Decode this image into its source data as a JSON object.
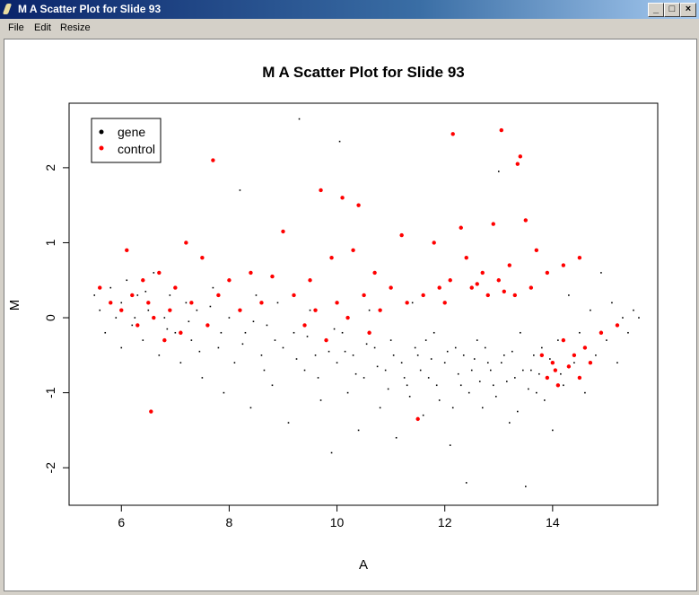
{
  "window": {
    "title": "M A Scatter Plot for Slide 93",
    "icon": "feather-icon",
    "controls": [
      "minimize",
      "maximize",
      "close"
    ]
  },
  "menu": [
    "File",
    "Edit",
    "Resize"
  ],
  "chart_data": {
    "type": "scatter",
    "title": "M A Scatter Plot for Slide 93",
    "xlabel": "A",
    "ylabel": "M",
    "xlim": [
      5.03,
      15.95
    ],
    "ylim": [
      -2.5,
      2.86
    ],
    "xticks": [
      6,
      8,
      10,
      12,
      14
    ],
    "yticks": [
      -2,
      -1,
      0,
      1,
      2
    ],
    "grid": false,
    "legend_position": "top-left",
    "series": [
      {
        "name": "gene",
        "color": "#000000",
        "points": [
          [
            5.5,
            0.3
          ],
          [
            5.6,
            0.1
          ],
          [
            5.7,
            -0.2
          ],
          [
            5.8,
            0.4
          ],
          [
            5.9,
            0.0
          ],
          [
            6.0,
            0.2
          ],
          [
            6.0,
            -0.4
          ],
          [
            6.1,
            0.5
          ],
          [
            6.2,
            -0.1
          ],
          [
            6.3,
            0.3
          ],
          [
            6.4,
            -0.3
          ],
          [
            6.5,
            0.1
          ],
          [
            6.6,
            0.6
          ],
          [
            6.7,
            -0.5
          ],
          [
            6.8,
            0.0
          ],
          [
            6.9,
            0.3
          ],
          [
            7.0,
            -0.2
          ],
          [
            7.1,
            -0.6
          ],
          [
            7.2,
            0.2
          ],
          [
            7.3,
            -0.3
          ],
          [
            7.4,
            0.1
          ],
          [
            7.5,
            -0.8
          ],
          [
            7.6,
            -0.1
          ],
          [
            7.7,
            0.4
          ],
          [
            7.8,
            -0.4
          ],
          [
            7.9,
            -1.0
          ],
          [
            8.0,
            0.0
          ],
          [
            8.1,
            -0.6
          ],
          [
            8.2,
            1.7
          ],
          [
            8.3,
            -0.2
          ],
          [
            8.4,
            -1.2
          ],
          [
            8.5,
            0.3
          ],
          [
            8.6,
            -0.5
          ],
          [
            8.7,
            -0.1
          ],
          [
            8.8,
            -0.9
          ],
          [
            8.9,
            0.2
          ],
          [
            9.0,
            -0.4
          ],
          [
            9.1,
            -1.4
          ],
          [
            9.2,
            -0.2
          ],
          [
            9.3,
            2.65
          ],
          [
            9.4,
            -0.7
          ],
          [
            9.5,
            0.1
          ],
          [
            9.6,
            -0.5
          ],
          [
            9.7,
            -1.1
          ],
          [
            9.8,
            -0.3
          ],
          [
            9.9,
            -1.8
          ],
          [
            10.0,
            -0.6
          ],
          [
            10.05,
            2.35
          ],
          [
            10.1,
            -0.2
          ],
          [
            10.2,
            -1.0
          ],
          [
            10.3,
            -0.5
          ],
          [
            10.4,
            -1.5
          ],
          [
            10.5,
            -0.8
          ],
          [
            10.6,
            0.1
          ],
          [
            10.7,
            -0.4
          ],
          [
            10.8,
            -1.2
          ],
          [
            10.9,
            -0.7
          ],
          [
            11.0,
            -0.3
          ],
          [
            11.1,
            -1.6
          ],
          [
            11.2,
            -0.6
          ],
          [
            11.3,
            -0.9
          ],
          [
            11.4,
            0.2
          ],
          [
            11.5,
            -0.5
          ],
          [
            11.6,
            -1.3
          ],
          [
            11.7,
            -0.8
          ],
          [
            11.8,
            -0.2
          ],
          [
            11.9,
            -1.1
          ],
          [
            12.0,
            -0.6
          ],
          [
            12.1,
            -1.7
          ],
          [
            12.2,
            -0.4
          ],
          [
            12.3,
            -0.9
          ],
          [
            12.4,
            -2.2
          ],
          [
            12.5,
            -0.7
          ],
          [
            12.6,
            -0.3
          ],
          [
            12.7,
            -1.2
          ],
          [
            12.8,
            -0.6
          ],
          [
            12.9,
            -0.9
          ],
          [
            13.0,
            1.95
          ],
          [
            13.1,
            -0.5
          ],
          [
            13.2,
            -1.4
          ],
          [
            13.3,
            -0.8
          ],
          [
            13.4,
            -0.2
          ],
          [
            13.5,
            -2.25
          ],
          [
            13.6,
            -0.7
          ],
          [
            13.7,
            -1.0
          ],
          [
            13.8,
            -0.4
          ],
          [
            13.9,
            -0.8
          ],
          [
            14.0,
            -1.5
          ],
          [
            14.1,
            -0.3
          ],
          [
            14.2,
            -0.9
          ],
          [
            14.3,
            0.3
          ],
          [
            14.4,
            -0.6
          ],
          [
            14.5,
            -0.2
          ],
          [
            14.6,
            -1.0
          ],
          [
            14.7,
            0.1
          ],
          [
            14.8,
            -0.5
          ],
          [
            14.9,
            0.6
          ],
          [
            15.0,
            -0.3
          ],
          [
            15.1,
            0.2
          ],
          [
            15.2,
            -0.6
          ],
          [
            15.3,
            0.0
          ],
          [
            15.4,
            -0.2
          ],
          [
            15.5,
            0.1
          ],
          [
            15.6,
            0.0
          ],
          [
            10.15,
            -0.45
          ],
          [
            10.35,
            -0.75
          ],
          [
            10.55,
            -0.35
          ],
          [
            10.75,
            -0.65
          ],
          [
            10.95,
            -0.95
          ],
          [
            11.05,
            -0.5
          ],
          [
            11.25,
            -0.8
          ],
          [
            11.45,
            -0.4
          ],
          [
            11.55,
            -0.7
          ],
          [
            11.75,
            -0.55
          ],
          [
            11.85,
            -0.9
          ],
          [
            12.05,
            -0.45
          ],
          [
            12.25,
            -0.75
          ],
          [
            12.35,
            -0.5
          ],
          [
            12.45,
            -1.0
          ],
          [
            12.55,
            -0.55
          ],
          [
            12.65,
            -0.85
          ],
          [
            12.75,
            -0.4
          ],
          [
            12.85,
            -0.7
          ],
          [
            12.95,
            -1.05
          ],
          [
            13.05,
            -0.6
          ],
          [
            13.15,
            -0.85
          ],
          [
            13.25,
            -0.45
          ],
          [
            13.45,
            -0.7
          ],
          [
            13.55,
            -0.95
          ],
          [
            13.65,
            -0.5
          ],
          [
            13.75,
            -0.75
          ],
          [
            13.85,
            -1.1
          ],
          [
            13.95,
            -0.55
          ],
          [
            14.15,
            -0.75
          ],
          [
            9.25,
            -0.55
          ],
          [
            9.45,
            -0.25
          ],
          [
            9.65,
            -0.8
          ],
          [
            9.85,
            -0.45
          ],
          [
            9.95,
            -0.15
          ],
          [
            8.25,
            -0.35
          ],
          [
            8.45,
            -0.05
          ],
          [
            8.65,
            -0.7
          ],
          [
            8.85,
            -0.3
          ],
          [
            7.25,
            -0.05
          ],
          [
            7.45,
            -0.45
          ],
          [
            7.65,
            0.15
          ],
          [
            7.85,
            -0.2
          ],
          [
            6.25,
            0.0
          ],
          [
            6.45,
            0.35
          ],
          [
            6.85,
            -0.15
          ],
          [
            11.35,
            -1.05
          ],
          [
            11.65,
            -0.3
          ],
          [
            12.15,
            -1.2
          ],
          [
            13.35,
            -1.25
          ]
        ]
      },
      {
        "name": "control",
        "color": "#ff0000",
        "points": [
          [
            5.6,
            0.4
          ],
          [
            5.8,
            0.2
          ],
          [
            6.0,
            0.1
          ],
          [
            6.1,
            0.9
          ],
          [
            6.2,
            0.3
          ],
          [
            6.3,
            -0.1
          ],
          [
            6.4,
            0.5
          ],
          [
            6.5,
            0.2
          ],
          [
            6.55,
            -1.25
          ],
          [
            6.6,
            0.0
          ],
          [
            6.7,
            0.6
          ],
          [
            6.8,
            -0.3
          ],
          [
            6.9,
            0.1
          ],
          [
            7.0,
            0.4
          ],
          [
            7.1,
            -0.2
          ],
          [
            7.2,
            1.0
          ],
          [
            7.3,
            0.2
          ],
          [
            7.5,
            0.8
          ],
          [
            7.6,
            -0.1
          ],
          [
            7.7,
            2.1
          ],
          [
            7.8,
            0.3
          ],
          [
            8.0,
            0.5
          ],
          [
            8.2,
            0.1
          ],
          [
            8.4,
            0.6
          ],
          [
            8.6,
            0.2
          ],
          [
            8.8,
            0.55
          ],
          [
            9.0,
            1.15
          ],
          [
            9.2,
            0.3
          ],
          [
            9.4,
            -0.1
          ],
          [
            9.5,
            0.5
          ],
          [
            9.6,
            0.1
          ],
          [
            9.7,
            1.7
          ],
          [
            9.8,
            -0.3
          ],
          [
            9.9,
            0.8
          ],
          [
            10.0,
            0.2
          ],
          [
            10.1,
            1.6
          ],
          [
            10.2,
            0.0
          ],
          [
            10.3,
            0.9
          ],
          [
            10.4,
            1.5
          ],
          [
            10.5,
            0.3
          ],
          [
            10.6,
            -0.2
          ],
          [
            10.7,
            0.6
          ],
          [
            10.8,
            0.1
          ],
          [
            11.0,
            0.4
          ],
          [
            11.2,
            1.1
          ],
          [
            11.3,
            0.2
          ],
          [
            11.5,
            -1.35
          ],
          [
            11.6,
            0.3
          ],
          [
            11.8,
            1.0
          ],
          [
            11.9,
            0.4
          ],
          [
            12.0,
            0.2
          ],
          [
            12.1,
            0.5
          ],
          [
            12.15,
            2.45
          ],
          [
            12.3,
            1.2
          ],
          [
            12.4,
            0.8
          ],
          [
            12.5,
            0.4
          ],
          [
            12.7,
            0.6
          ],
          [
            12.8,
            0.3
          ],
          [
            12.9,
            1.25
          ],
          [
            13.0,
            0.5
          ],
          [
            13.05,
            2.5
          ],
          [
            13.2,
            0.7
          ],
          [
            13.3,
            0.3
          ],
          [
            13.35,
            2.05
          ],
          [
            13.4,
            2.15
          ],
          [
            13.5,
            1.3
          ],
          [
            13.6,
            0.4
          ],
          [
            13.7,
            0.9
          ],
          [
            13.8,
            -0.5
          ],
          [
            13.9,
            -0.8
          ],
          [
            14.0,
            -0.6
          ],
          [
            14.05,
            -0.7
          ],
          [
            14.1,
            -0.9
          ],
          [
            14.2,
            -0.3
          ],
          [
            14.3,
            -0.65
          ],
          [
            14.4,
            -0.5
          ],
          [
            14.5,
            -0.8
          ],
          [
            14.6,
            -0.4
          ],
          [
            14.7,
            -0.6
          ],
          [
            14.9,
            -0.2
          ],
          [
            15.2,
            -0.1
          ],
          [
            13.9,
            0.6
          ],
          [
            14.2,
            0.7
          ],
          [
            14.5,
            0.8
          ],
          [
            12.6,
            0.45
          ],
          [
            13.1,
            0.35
          ]
        ]
      }
    ]
  }
}
